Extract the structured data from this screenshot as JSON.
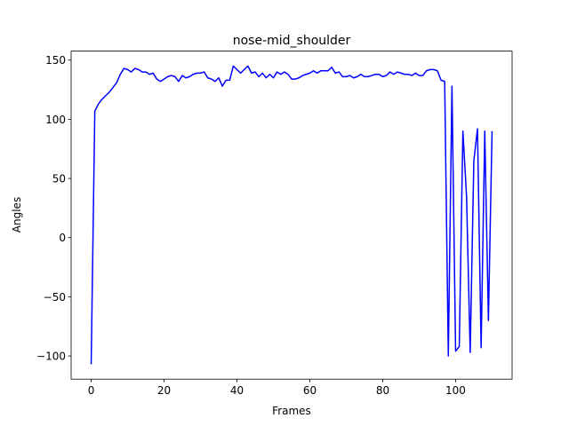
{
  "chart_data": {
    "type": "line",
    "title": "nose-mid_shoulder",
    "x_label": "Frames",
    "y_label": "Angles",
    "x": [
      0,
      1,
      2,
      3,
      4,
      5,
      6,
      7,
      8,
      9,
      10,
      11,
      12,
      13,
      14,
      15,
      16,
      17,
      18,
      19,
      20,
      21,
      22,
      23,
      24,
      25,
      26,
      27,
      28,
      29,
      30,
      31,
      32,
      33,
      34,
      35,
      36,
      37,
      38,
      39,
      40,
      41,
      42,
      43,
      44,
      45,
      46,
      47,
      48,
      49,
      50,
      51,
      52,
      53,
      54,
      55,
      56,
      57,
      58,
      59,
      60,
      61,
      62,
      63,
      64,
      65,
      66,
      67,
      68,
      69,
      70,
      71,
      72,
      73,
      74,
      75,
      76,
      77,
      78,
      79,
      80,
      81,
      82,
      83,
      84,
      85,
      86,
      87,
      88,
      89,
      90,
      91,
      92,
      93,
      94,
      95,
      96,
      97,
      98,
      99,
      100,
      101,
      102,
      103,
      104,
      105,
      106,
      107,
      108,
      109,
      110
    ],
    "values": [
      -107,
      107,
      113,
      117,
      120,
      123,
      127,
      131,
      138,
      143,
      142,
      140,
      143,
      142,
      140,
      140,
      138,
      139,
      134,
      132,
      134,
      136,
      137,
      136,
      132,
      137,
      135,
      136,
      138,
      139,
      139,
      140,
      135,
      134,
      132,
      135,
      128,
      133,
      133,
      145,
      142,
      139,
      142,
      145,
      139,
      140,
      136,
      139,
      135,
      138,
      135,
      140,
      138,
      140,
      138,
      134,
      134,
      135,
      137,
      138,
      139,
      141,
      139,
      141,
      141,
      141,
      144,
      139,
      140,
      136,
      136,
      137,
      135,
      136,
      138,
      136,
      136,
      137,
      138,
      138,
      136,
      137,
      140,
      138,
      140,
      139,
      138,
      138,
      137,
      139,
      137,
      137,
      141,
      142,
      142,
      141,
      133,
      132,
      -100,
      128,
      -96,
      -92,
      90,
      35,
      -97,
      65,
      92,
      -93,
      90,
      -70,
      90
    ],
    "color": "#0000ff",
    "xlim": [
      -5.5,
      115.5
    ],
    "ylim": [
      -119.6,
      157.6
    ],
    "xticks": [
      0,
      20,
      40,
      60,
      80,
      100
    ],
    "yticks": [
      {
        "value": -100,
        "label": "−100"
      },
      {
        "value": -50,
        "label": "−50"
      },
      0,
      50,
      100,
      150
    ]
  }
}
